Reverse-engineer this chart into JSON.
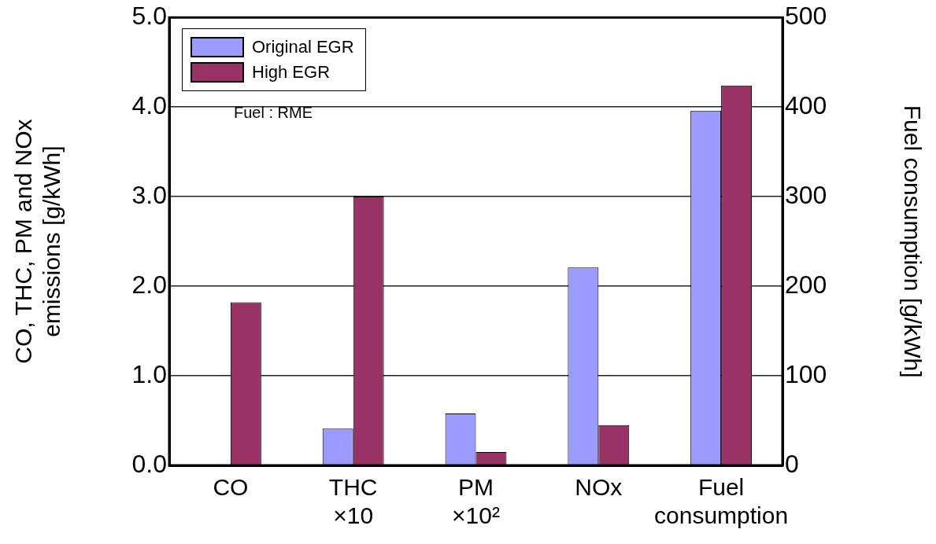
{
  "chart_data": {
    "type": "bar",
    "categories": [
      "CO",
      "THC\n×10",
      "PM\n×10²",
      "NOx",
      "Fuel\nconsumption"
    ],
    "series": [
      {
        "name": "Original EGR",
        "color": "#9b9bff",
        "values": [
          0,
          0.41,
          0.58,
          2.21,
          null
        ]
      },
      {
        "name": "High EGR",
        "color": "#993366",
        "values": [
          1.82,
          3.0,
          0.15,
          0.45,
          null
        ]
      },
      {
        "color": "#9b9bff",
        "axis": "y2",
        "values": [
          null,
          null,
          null,
          null,
          396
        ]
      },
      {
        "color": "#993366",
        "axis": "y2",
        "values": [
          null,
          null,
          null,
          null,
          424
        ]
      }
    ],
    "ylabel": "CO, THC, PM and NOx\nemissions [g/kWh]",
    "y2label": "Fuel consumption [g/kWh]",
    "ylim": [
      0,
      5
    ],
    "yticks": [
      {
        "value": 0,
        "label": "0.0"
      },
      {
        "value": 1,
        "label": "1.0"
      },
      {
        "value": 2,
        "label": "2.0"
      },
      {
        "value": 3,
        "label": "3.0"
      },
      {
        "value": 4,
        "label": "4.0"
      },
      {
        "value": 5,
        "label": "5.0"
      }
    ],
    "y2lim": [
      0,
      500
    ],
    "y2ticks": [
      0,
      100,
      200,
      300,
      400,
      500
    ],
    "annotations": [
      "Fuel : RME"
    ],
    "grid": "y",
    "legend": "top left"
  }
}
